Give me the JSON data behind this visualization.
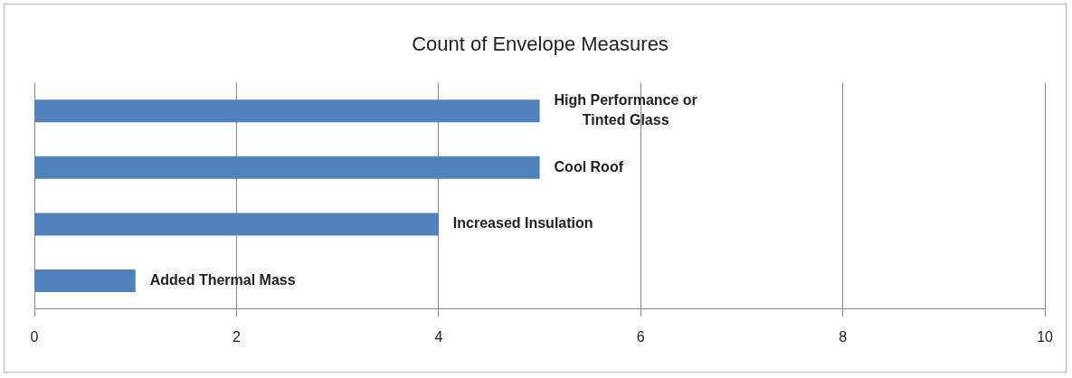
{
  "chart_data": {
    "type": "bar",
    "orientation": "horizontal",
    "title": "Count of Envelope Measures",
    "categories": [
      "High Performance or Tinted Glass",
      "Cool Roof",
      "Increased Insulation",
      "Added Thermal Mass"
    ],
    "values": [
      5,
      5,
      4,
      1
    ],
    "color": "#4f81bd",
    "xlim": [
      0,
      10
    ],
    "xticks": [
      0,
      2,
      4,
      6,
      8,
      10
    ],
    "grid": "x",
    "legend": false
  }
}
